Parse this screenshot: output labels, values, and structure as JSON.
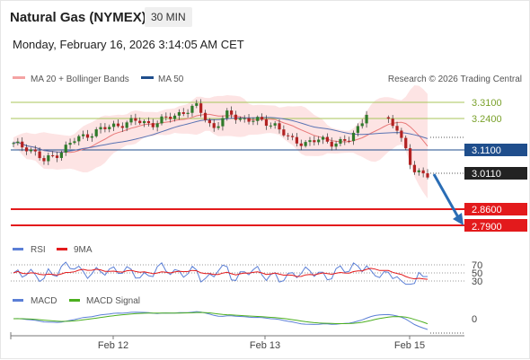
{
  "header": {
    "instrument": "Natural Gas (NYMEX)",
    "interval": "30 MIN",
    "datetime": "Monday, February 16, 2026 3:14:05 AM CET"
  },
  "main_legend": [
    {
      "label": "MA 20 + Bollinger Bands",
      "color": "#f4a3a3"
    },
    {
      "label": "MA 50",
      "color": "#1f4e8c"
    }
  ],
  "credit": "Research © 2026 Trading Central",
  "levels": [
    {
      "label": "3.3100",
      "style": "line",
      "color": "#a8c65a"
    },
    {
      "label": "3.2400",
      "style": "line",
      "color": "#a8c65a"
    },
    {
      "label": "3.1100",
      "style": "box",
      "color": "#1f4e8c"
    },
    {
      "label": "3.0110",
      "style": "box",
      "color": "#222222"
    },
    {
      "label": "2.8600",
      "style": "box",
      "color": "#e31a1c"
    },
    {
      "label": "2.7900",
      "style": "box",
      "color": "#e31a1c"
    }
  ],
  "rsi_legend": [
    {
      "label": "RSI",
      "color": "#5b7fd6"
    },
    {
      "label": "9MA",
      "color": "#e31a1c"
    }
  ],
  "rsi_levels": [
    "70",
    "50",
    "30"
  ],
  "macd_legend": [
    {
      "label": "MACD",
      "color": "#5b7fd6"
    },
    {
      "label": "MACD Signal",
      "color": "#4caf1f"
    }
  ],
  "macd_zero_label": "0",
  "x_axis_labels": [
    "Feb 12",
    "Feb 13",
    "Feb 15"
  ],
  "chart_data": {
    "type": "candlestick",
    "title": "Natural Gas (NYMEX)",
    "interval": "30 MIN",
    "ylim": [
      2.75,
      3.38
    ],
    "price_levels": {
      "resistance": [
        3.31,
        3.24
      ],
      "pivot": 3.11,
      "last": 3.011,
      "support": [
        2.86,
        2.79
      ]
    },
    "x_ticks": [
      "Feb 12",
      "Feb 13",
      "Feb 15"
    ],
    "approx_close_path": [
      3.13,
      3.12,
      3.06,
      3.1,
      3.15,
      3.18,
      3.2,
      3.22,
      3.23,
      3.22,
      3.24,
      3.27,
      3.29,
      3.2,
      3.26,
      3.24,
      3.23,
      3.22,
      3.15,
      3.14,
      3.15,
      3.14,
      3.15,
      3.27,
      3.25,
      3.21,
      3.02,
      3.01
    ],
    "rsi_levels": [
      70,
      50,
      30
    ],
    "macd_zero": 0
  }
}
